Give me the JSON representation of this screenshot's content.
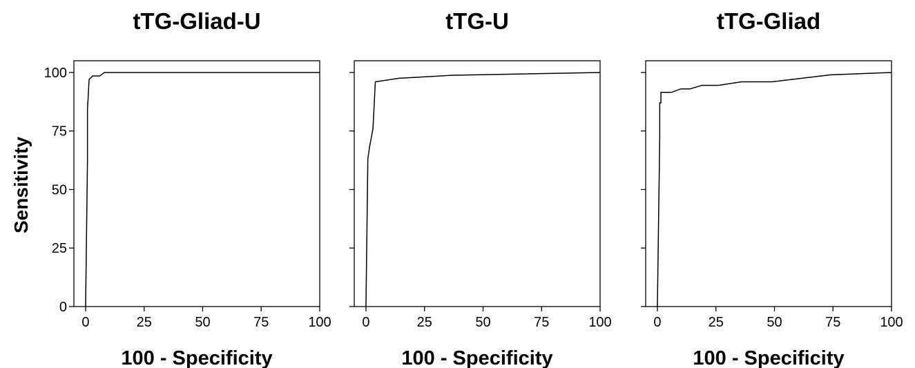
{
  "shared_ylabel": "Sensitivity",
  "chart_data": [
    {
      "type": "line",
      "title": "tTG-Gliad-U",
      "xlabel": "100 - Specificity",
      "ylabel": "Sensitivity",
      "xlim": [
        -5,
        100
      ],
      "ylim": [
        0,
        105
      ],
      "xticks": [
        0,
        25,
        50,
        75,
        100
      ],
      "yticks": [
        0,
        25,
        50,
        75,
        100
      ],
      "xtick_labels": [
        "0",
        "25",
        "50",
        "75",
        "100"
      ],
      "ytick_labels": [
        "0",
        "25",
        "50",
        "75",
        "100"
      ],
      "x": [
        0,
        0.8,
        0.8,
        1.5,
        3,
        6,
        8,
        100
      ],
      "y": [
        0,
        62,
        84,
        97,
        98.5,
        98.5,
        100,
        100
      ]
    },
    {
      "type": "line",
      "title": "tTG-U",
      "xlabel": "100 - Specificity",
      "ylabel": "",
      "xlim": [
        -5,
        100
      ],
      "ylim": [
        0,
        105
      ],
      "xticks": [
        0,
        25,
        50,
        75,
        100
      ],
      "yticks": [
        0,
        25,
        50,
        75,
        100
      ],
      "xtick_labels": [
        "0",
        "25",
        "50",
        "75",
        "100"
      ],
      "ytick_labels": [],
      "x": [
        0,
        0.8,
        1.5,
        3,
        4,
        14,
        37,
        100
      ],
      "y": [
        0,
        63,
        68,
        76,
        96,
        97.5,
        98.8,
        100
      ]
    },
    {
      "type": "line",
      "title": "tTG-Gliad",
      "xlabel": "100 - Specificity",
      "ylabel": "",
      "xlim": [
        -5,
        100
      ],
      "ylim": [
        0,
        105
      ],
      "xticks": [
        0,
        25,
        50,
        75,
        100
      ],
      "yticks": [
        0,
        25,
        50,
        75,
        100
      ],
      "xtick_labels": [
        "0",
        "25",
        "50",
        "75",
        "100"
      ],
      "ytick_labels": [],
      "x": [
        0,
        1,
        1,
        1.5,
        1.5,
        2.3,
        2.3,
        6,
        10,
        10,
        14,
        19,
        19,
        26,
        36,
        49,
        74,
        100
      ],
      "y": [
        0,
        72,
        87,
        87,
        91.5,
        91.5,
        91.5,
        91.5,
        93,
        93,
        93,
        94.5,
        94.5,
        94.5,
        96,
        96,
        99,
        100
      ]
    }
  ]
}
